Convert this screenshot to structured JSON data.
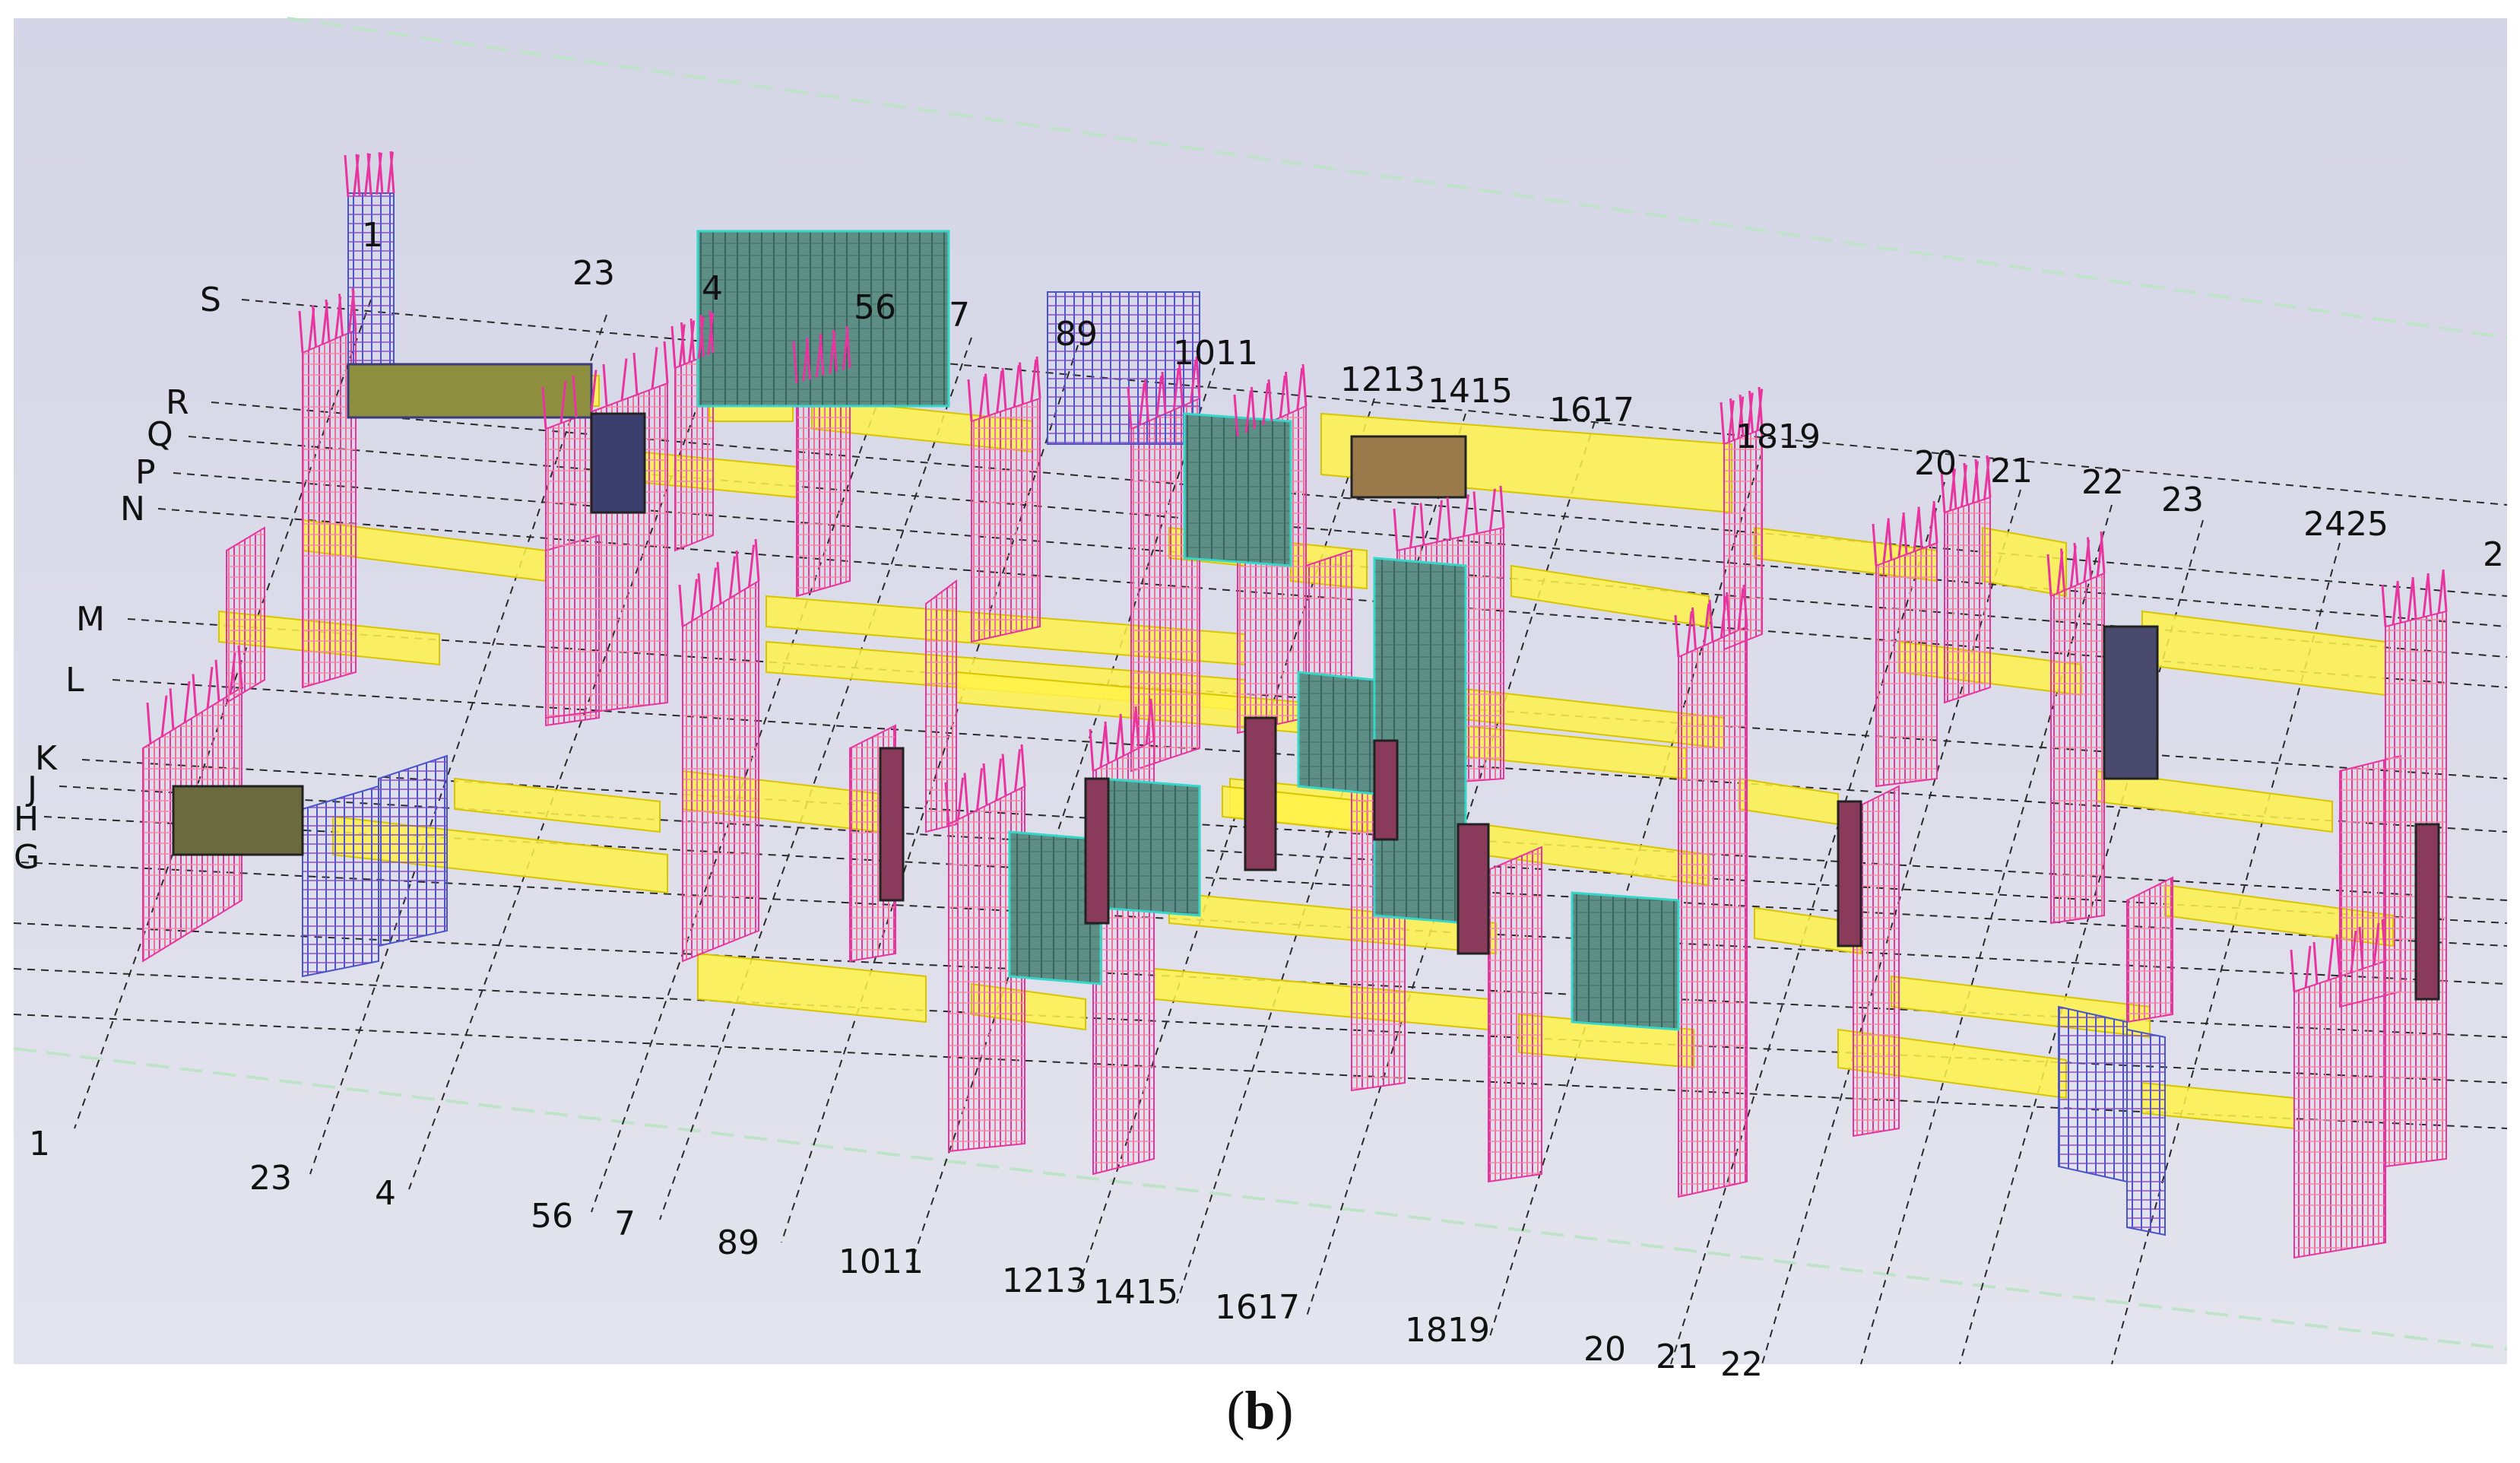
{
  "caption": {
    "open": "(",
    "letter": "b",
    "close": ")"
  },
  "colors": {
    "background_top": "#d4d5e6",
    "background_bottom": "#e4e4ee",
    "rebar_magenta": "#e8349e",
    "rebar_pink": "#ef6f9d",
    "rebar_blue": "#4a55c8",
    "beam_yellow": "#fff24a",
    "wall_panel": "#5d8f86",
    "cyan_mesh": "#36d6c8",
    "gridline": "#2a2a2a"
  },
  "row_axis_labels": [
    "S",
    "R",
    "Q",
    "P",
    "N",
    "M",
    "L",
    "K",
    "J",
    "H",
    "G"
  ],
  "top_column_labels": [
    "1",
    "23",
    "4",
    "56",
    "7",
    "89",
    "1011",
    "1213",
    "1415",
    "1617",
    "1819",
    "20",
    "21",
    "22",
    "23",
    "2425",
    "2"
  ],
  "bottom_column_labels": [
    "1",
    "23",
    "4",
    "56",
    "7",
    "89",
    "1011",
    "1213",
    "1415",
    "1617",
    "1819",
    "20",
    "21",
    "22"
  ]
}
